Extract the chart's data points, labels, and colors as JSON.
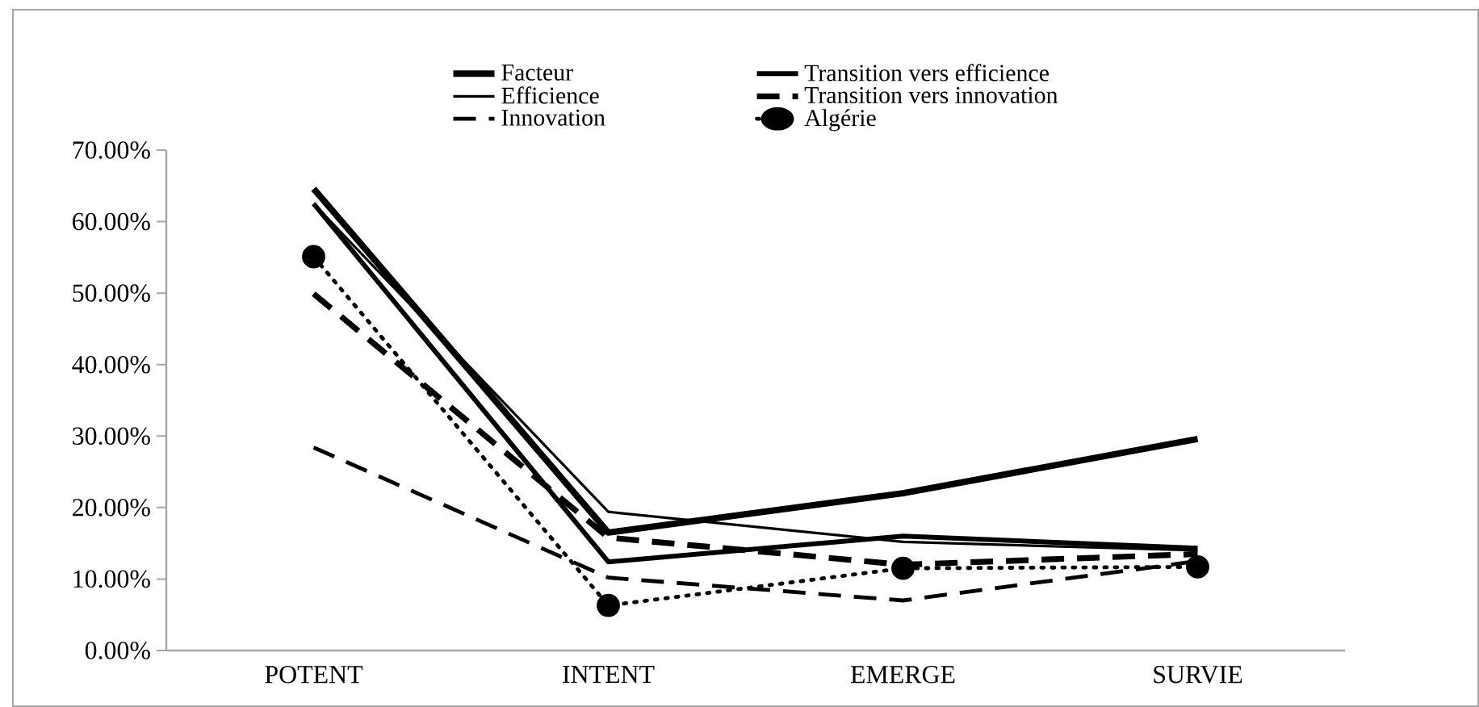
{
  "chart_data": {
    "type": "line",
    "categories": [
      "POTENT",
      "INTENT",
      "EMERGE",
      "SURVIE"
    ],
    "ylim": [
      0,
      70
    ],
    "yticks": [
      {
        "value": 0,
        "label": "0.00%"
      },
      {
        "value": 10,
        "label": "10.00%"
      },
      {
        "value": 20,
        "label": "20.00%"
      },
      {
        "value": 30,
        "label": "30.00%"
      },
      {
        "value": 40,
        "label": "40.00%"
      },
      {
        "value": 50,
        "label": "50.00%"
      },
      {
        "value": 60,
        "label": "60.00%"
      },
      {
        "value": 70,
        "label": "70.00%"
      }
    ],
    "grid": false,
    "legend": "top",
    "series": [
      {
        "name": "Facteur",
        "color": "#000000",
        "line_style": "solid",
        "marker": "none",
        "values": [
          64.6,
          16.5,
          22.0,
          29.6
        ]
      },
      {
        "name": "Transition vers efficience",
        "color": "#000000",
        "line_style": "solid",
        "marker": "none",
        "values": [
          62.5,
          12.4,
          16.0,
          14.3
        ]
      },
      {
        "name": "Efficience",
        "color": "#000000",
        "line_style": "solid",
        "marker": "none",
        "values": [
          62.5,
          19.4,
          15.2,
          14.0
        ]
      },
      {
        "name": "Transition vers innovation",
        "color": "#000000",
        "line_style": "dashed",
        "marker": "none",
        "values": [
          49.9,
          15.8,
          12.0,
          13.5
        ]
      },
      {
        "name": "Innovation",
        "color": "#000000",
        "line_style": "dashed",
        "marker": "none",
        "values": [
          28.4,
          10.2,
          7.0,
          12.5
        ]
      },
      {
        "name": "Algérie",
        "color": "#000000",
        "line_style": "dotted",
        "marker": "circle",
        "values": [
          55.1,
          6.3,
          11.5,
          11.7
        ]
      }
    ]
  }
}
